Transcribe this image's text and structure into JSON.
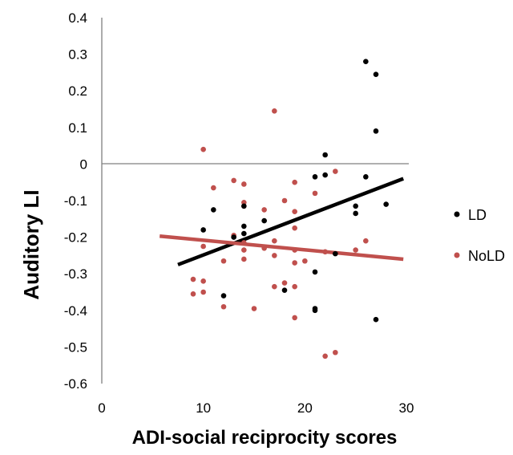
{
  "chart_data": {
    "type": "scatter",
    "title": "",
    "xlabel": "ADI-social reciprocity scores",
    "ylabel": "Auditory  LI",
    "xlim": [
      0,
      30
    ],
    "ylim": [
      -0.6,
      0.4
    ],
    "x_ticks": [
      "0",
      "10",
      "20",
      "30"
    ],
    "y_ticks": [
      "0.4",
      "0.3",
      "0.2",
      "0.1",
      "0",
      "-0.1",
      "-0.2",
      "-0.3",
      "-0.4",
      "-0.5",
      "-0.6"
    ],
    "grid": false,
    "legend_position": "right",
    "series": [
      {
        "name": "LD",
        "color": "#000000",
        "points": [
          [
            10,
            -0.18
          ],
          [
            11,
            -0.125
          ],
          [
            12,
            -0.36
          ],
          [
            13,
            -0.2
          ],
          [
            14,
            -0.19
          ],
          [
            14,
            -0.17
          ],
          [
            14,
            -0.115
          ],
          [
            16,
            -0.155
          ],
          [
            18,
            -0.345
          ],
          [
            21,
            -0.035
          ],
          [
            21,
            -0.295
          ],
          [
            21,
            -0.395
          ],
          [
            22,
            -0.03
          ],
          [
            22,
            0.025
          ],
          [
            23,
            -0.245
          ],
          [
            25,
            -0.115
          ],
          [
            25,
            -0.135
          ],
          [
            26,
            0.28
          ],
          [
            26,
            -0.035
          ],
          [
            27,
            0.245
          ],
          [
            27,
            0.09
          ],
          [
            27,
            -0.425
          ],
          [
            28,
            -0.11
          ],
          [
            21,
            -0.4
          ]
        ],
        "trend": {
          "x": [
            7.5,
            29.7
          ],
          "y": [
            -0.275,
            -0.04
          ]
        }
      },
      {
        "name": "NoLD",
        "color": "#c0504d",
        "points": [
          [
            9,
            -0.315
          ],
          [
            9,
            -0.355
          ],
          [
            10,
            0.04
          ],
          [
            10,
            -0.225
          ],
          [
            10,
            -0.32
          ],
          [
            10,
            -0.35
          ],
          [
            11,
            -0.065
          ],
          [
            12,
            -0.265
          ],
          [
            12,
            -0.39
          ],
          [
            13,
            -0.045
          ],
          [
            13,
            -0.195
          ],
          [
            14,
            -0.055
          ],
          [
            14,
            -0.105
          ],
          [
            14,
            -0.115
          ],
          [
            14,
            -0.215
          ],
          [
            14,
            -0.235
          ],
          [
            14,
            -0.26
          ],
          [
            15,
            -0.395
          ],
          [
            16,
            -0.125
          ],
          [
            16,
            -0.23
          ],
          [
            17,
            0.145
          ],
          [
            17,
            -0.21
          ],
          [
            17,
            -0.25
          ],
          [
            17,
            -0.335
          ],
          [
            18,
            -0.1
          ],
          [
            18,
            -0.325
          ],
          [
            19,
            -0.05
          ],
          [
            19,
            -0.13
          ],
          [
            19,
            -0.175
          ],
          [
            19,
            -0.235
          ],
          [
            19,
            -0.27
          ],
          [
            19,
            -0.335
          ],
          [
            19,
            -0.42
          ],
          [
            20,
            -0.265
          ],
          [
            21,
            -0.08
          ],
          [
            22,
            -0.24
          ],
          [
            22,
            -0.525
          ],
          [
            23,
            -0.02
          ],
          [
            23,
            -0.515
          ],
          [
            25,
            -0.235
          ],
          [
            26,
            -0.21
          ]
        ],
        "trend": {
          "x": [
            5.7,
            29.7
          ],
          "y": [
            -0.197,
            -0.26
          ]
        }
      }
    ]
  }
}
